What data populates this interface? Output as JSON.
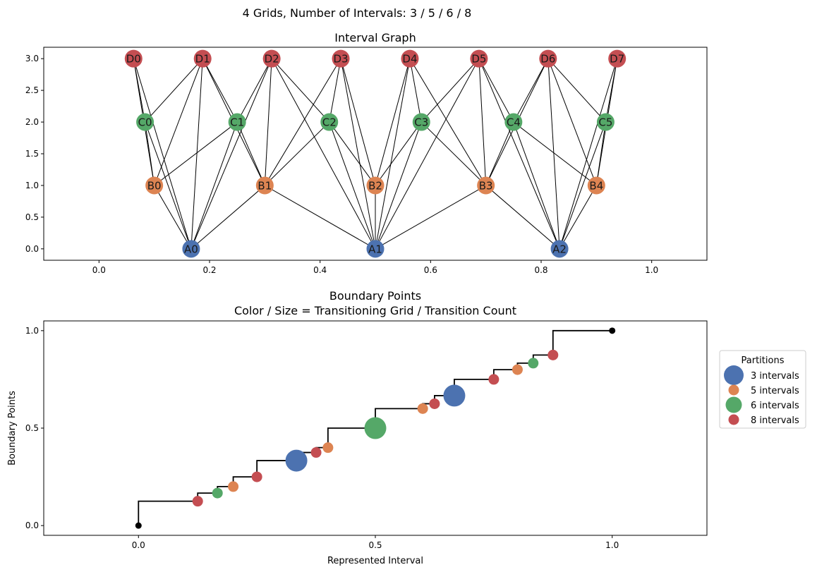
{
  "figure": {
    "suptitle": "4 Grids, Number of Intervals: 3 / 5 / 6 / 8"
  },
  "colors": {
    "A": "#4c72b0",
    "B": "#dd8452",
    "C": "#55a868",
    "D": "#c44e52",
    "edge": "#000000",
    "endpoint": "#000000"
  },
  "chart_data": [
    {
      "type": "network",
      "title": "Interval Graph",
      "xlabel": "",
      "ylabel": "",
      "xlim": [
        -0.1,
        1.1
      ],
      "ylim": [
        -0.18,
        3.18
      ],
      "xticks": [
        0.0,
        0.2,
        0.4,
        0.6,
        0.8,
        1.0
      ],
      "xtick_labels": [
        "0.0",
        "0.2",
        "0.4",
        "0.6",
        "0.8",
        "1.0"
      ],
      "yticks": [
        0.0,
        0.5,
        1.0,
        1.5,
        2.0,
        2.5,
        3.0
      ],
      "ytick_labels": [
        "0.0",
        "0.5",
        "1.0",
        "1.5",
        "2.0",
        "2.5",
        "3.0"
      ],
      "nodes": [
        {
          "id": "A0",
          "group": "A",
          "x": 0.1667,
          "y": 0
        },
        {
          "id": "A1",
          "group": "A",
          "x": 0.5,
          "y": 0
        },
        {
          "id": "A2",
          "group": "A",
          "x": 0.8333,
          "y": 0
        },
        {
          "id": "B0",
          "group": "B",
          "x": 0.1,
          "y": 1
        },
        {
          "id": "B1",
          "group": "B",
          "x": 0.3,
          "y": 1
        },
        {
          "id": "B2",
          "group": "B",
          "x": 0.5,
          "y": 1
        },
        {
          "id": "B3",
          "group": "B",
          "x": 0.7,
          "y": 1
        },
        {
          "id": "B4",
          "group": "B",
          "x": 0.9,
          "y": 1
        },
        {
          "id": "C0",
          "group": "C",
          "x": 0.0833,
          "y": 2
        },
        {
          "id": "C1",
          "group": "C",
          "x": 0.25,
          "y": 2
        },
        {
          "id": "C2",
          "group": "C",
          "x": 0.4167,
          "y": 2
        },
        {
          "id": "C3",
          "group": "C",
          "x": 0.5833,
          "y": 2
        },
        {
          "id": "C4",
          "group": "C",
          "x": 0.75,
          "y": 2
        },
        {
          "id": "C5",
          "group": "C",
          "x": 0.9167,
          "y": 2
        },
        {
          "id": "D0",
          "group": "D",
          "x": 0.0625,
          "y": 3
        },
        {
          "id": "D1",
          "group": "D",
          "x": 0.1875,
          "y": 3
        },
        {
          "id": "D2",
          "group": "D",
          "x": 0.3125,
          "y": 3
        },
        {
          "id": "D3",
          "group": "D",
          "x": 0.4375,
          "y": 3
        },
        {
          "id": "D4",
          "group": "D",
          "x": 0.5625,
          "y": 3
        },
        {
          "id": "D5",
          "group": "D",
          "x": 0.6875,
          "y": 3
        },
        {
          "id": "D6",
          "group": "D",
          "x": 0.8125,
          "y": 3
        },
        {
          "id": "D7",
          "group": "D",
          "x": 0.9375,
          "y": 3
        }
      ],
      "edges": [
        [
          "A0",
          "B0"
        ],
        [
          "A0",
          "B1"
        ],
        [
          "A0",
          "C0"
        ],
        [
          "A0",
          "C1"
        ],
        [
          "A0",
          "D0"
        ],
        [
          "A0",
          "D1"
        ],
        [
          "A0",
          "D2"
        ],
        [
          "A1",
          "B1"
        ],
        [
          "A1",
          "B2"
        ],
        [
          "A1",
          "B3"
        ],
        [
          "A1",
          "C2"
        ],
        [
          "A1",
          "C3"
        ],
        [
          "A1",
          "D2"
        ],
        [
          "A1",
          "D3"
        ],
        [
          "A1",
          "D4"
        ],
        [
          "A1",
          "D5"
        ],
        [
          "A2",
          "B3"
        ],
        [
          "A2",
          "B4"
        ],
        [
          "A2",
          "C4"
        ],
        [
          "A2",
          "C5"
        ],
        [
          "A2",
          "D5"
        ],
        [
          "A2",
          "D6"
        ],
        [
          "A2",
          "D7"
        ],
        [
          "B0",
          "C0"
        ],
        [
          "B0",
          "C1"
        ],
        [
          "B0",
          "D0"
        ],
        [
          "B0",
          "D1"
        ],
        [
          "B1",
          "C1"
        ],
        [
          "B1",
          "C2"
        ],
        [
          "B1",
          "D1"
        ],
        [
          "B1",
          "D2"
        ],
        [
          "B1",
          "D3"
        ],
        [
          "B2",
          "C2"
        ],
        [
          "B2",
          "C3"
        ],
        [
          "B2",
          "D3"
        ],
        [
          "B2",
          "D4"
        ],
        [
          "B3",
          "C3"
        ],
        [
          "B3",
          "C4"
        ],
        [
          "B3",
          "D4"
        ],
        [
          "B3",
          "D5"
        ],
        [
          "B3",
          "D6"
        ],
        [
          "B4",
          "C4"
        ],
        [
          "B4",
          "C5"
        ],
        [
          "B4",
          "D6"
        ],
        [
          "B4",
          "D7"
        ],
        [
          "C0",
          "D0"
        ],
        [
          "C0",
          "D1"
        ],
        [
          "C1",
          "D1"
        ],
        [
          "C1",
          "D2"
        ],
        [
          "C2",
          "D2"
        ],
        [
          "C2",
          "D3"
        ],
        [
          "C3",
          "D4"
        ],
        [
          "C3",
          "D5"
        ],
        [
          "C4",
          "D5"
        ],
        [
          "C4",
          "D6"
        ],
        [
          "C5",
          "D6"
        ],
        [
          "C5",
          "D7"
        ]
      ]
    },
    {
      "type": "scatter",
      "title": "Boundary Points",
      "subtitle": "Color / Size = Transitioning Grid / Transition Count",
      "xlabel": "Represented Interval",
      "ylabel": "Boundary Points",
      "xlim": [
        -0.2,
        1.2
      ],
      "ylim": [
        -0.05,
        1.05
      ],
      "xticks": [
        0.0,
        0.5,
        1.0
      ],
      "xtick_labels": [
        "0.0",
        "0.5",
        "1.0"
      ],
      "yticks": [
        0.0,
        0.5,
        1.0
      ],
      "ytick_labels": [
        "0.0",
        "0.5",
        "1.0"
      ],
      "legend_title": "Partitions",
      "legend_position": "right",
      "legend": [
        {
          "label": "3 intervals",
          "group": "A",
          "size": 3
        },
        {
          "label": "5 intervals",
          "group": "B",
          "size": 1
        },
        {
          "label": "6 intervals",
          "group": "C",
          "size": 2
        },
        {
          "label": "8 intervals",
          "group": "D",
          "size": 1
        }
      ],
      "step_points": [
        0.0,
        0.125,
        0.1667,
        0.2,
        0.25,
        0.3333,
        0.375,
        0.4,
        0.5,
        0.6,
        0.625,
        0.6667,
        0.75,
        0.8,
        0.8333,
        0.875,
        1.0
      ],
      "points": [
        {
          "x": 0.0,
          "y": 0.0,
          "group": "endpoint",
          "count": 0
        },
        {
          "x": 0.125,
          "y": 0.125,
          "group": "D",
          "count": 1
        },
        {
          "x": 0.1667,
          "y": 0.1667,
          "group": "C",
          "count": 1
        },
        {
          "x": 0.2,
          "y": 0.2,
          "group": "B",
          "count": 1
        },
        {
          "x": 0.25,
          "y": 0.25,
          "group": "D",
          "count": 1
        },
        {
          "x": 0.3333,
          "y": 0.3333,
          "group": "A",
          "count": 3
        },
        {
          "x": 0.375,
          "y": 0.375,
          "group": "D",
          "count": 1
        },
        {
          "x": 0.4,
          "y": 0.4,
          "group": "B",
          "count": 1
        },
        {
          "x": 0.5,
          "y": 0.5,
          "group": "C",
          "count": 3
        },
        {
          "x": 0.6,
          "y": 0.6,
          "group": "B",
          "count": 1
        },
        {
          "x": 0.625,
          "y": 0.625,
          "group": "D",
          "count": 1
        },
        {
          "x": 0.6667,
          "y": 0.6667,
          "group": "A",
          "count": 3
        },
        {
          "x": 0.75,
          "y": 0.75,
          "group": "D",
          "count": 1
        },
        {
          "x": 0.8,
          "y": 0.8,
          "group": "B",
          "count": 1
        },
        {
          "x": 0.8333,
          "y": 0.8333,
          "group": "C",
          "count": 1
        },
        {
          "x": 0.875,
          "y": 0.875,
          "group": "D",
          "count": 1
        },
        {
          "x": 1.0,
          "y": 1.0,
          "group": "endpoint",
          "count": 0
        }
      ]
    }
  ]
}
